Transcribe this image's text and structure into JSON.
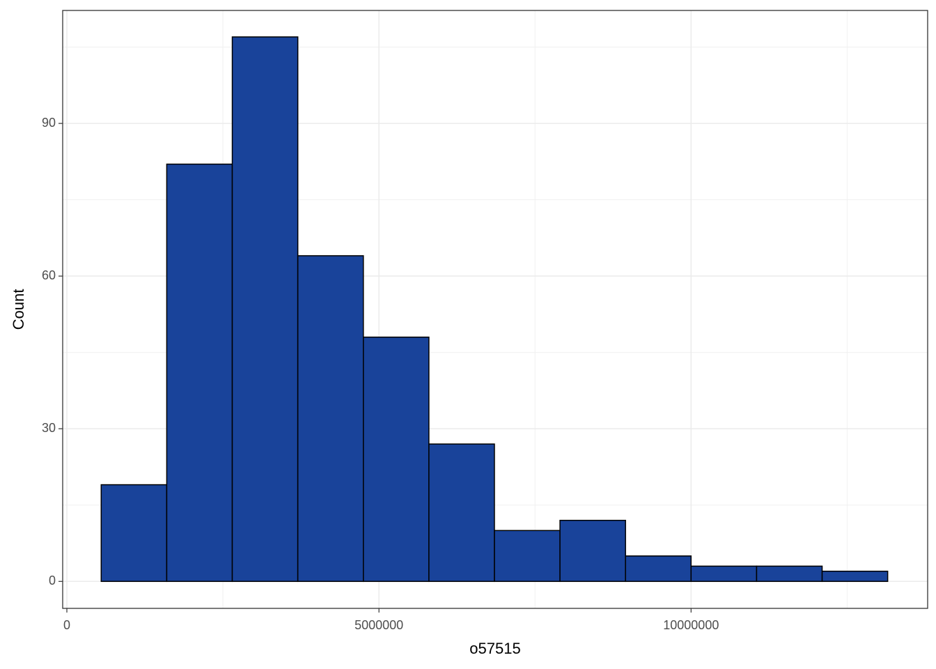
{
  "chart_data": {
    "type": "histogram",
    "x_label": "o57515",
    "y_label": "Count",
    "bins": [
      550000,
      1600000,
      2650000,
      3700000,
      4750000,
      5800000,
      6850000,
      7900000,
      8950000,
      10000000,
      11050000,
      12100000,
      13150000
    ],
    "values": [
      19,
      82,
      107,
      64,
      48,
      27,
      10,
      12,
      5,
      3,
      3,
      2
    ],
    "color": "#19439a",
    "edge_color": "#000000",
    "xlim": [
      -67000,
      13790000
    ],
    "ylim": [
      -5.3,
      112.2
    ],
    "xticks": [
      0,
      5000000,
      10000000
    ],
    "yticks": [
      0,
      30,
      60,
      90
    ],
    "x_minor_ticks": [
      2500000,
      7500000,
      12500000
    ],
    "y_minor_ticks": [
      15,
      45,
      75,
      105
    ],
    "grid": true
  }
}
